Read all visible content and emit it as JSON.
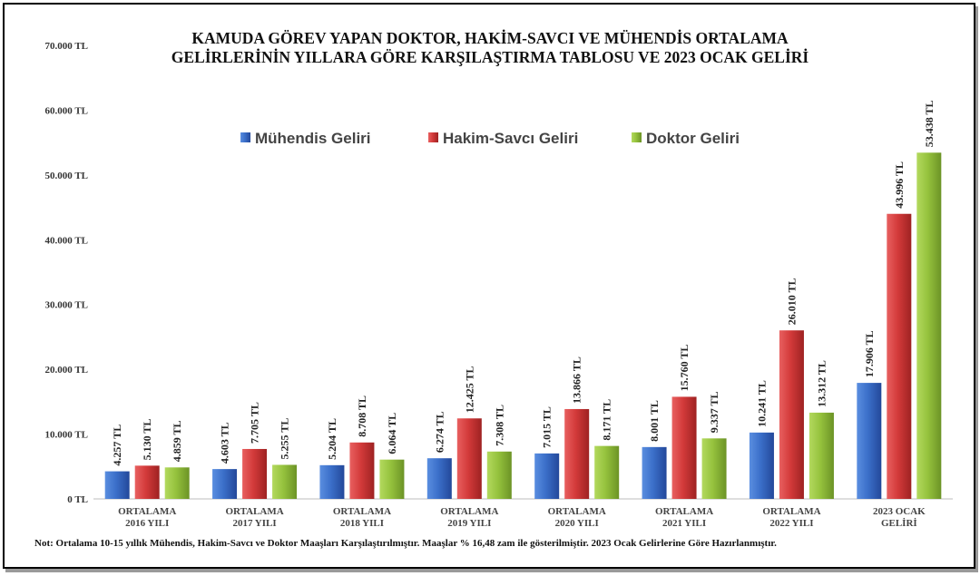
{
  "chart_data": {
    "type": "bar",
    "title": "KAMUDA GÖREV YAPAN DOKTOR, HAKİM-SAVCI VE MÜHENDİS ORTALAMA GELİRLERİNİN YILLARA GÖRE KARŞILAŞTIRMA TABLOSU VE 2023 OCAK GELİRİ",
    "title_lines": [
      "KAMUDA GÖREV YAPAN DOKTOR, HAKİM-SAVCI VE MÜHENDİS ORTALAMA",
      "GELİRLERİNİN YILLARA GÖRE KARŞILAŞTIRMA TABLOSU VE 2023 OCAK GELİRİ"
    ],
    "categories": [
      [
        "ORTALAMA",
        "2016 YILI"
      ],
      [
        "ORTALAMA",
        "2017 YILI"
      ],
      [
        "ORTALAMA",
        "2018 YILI"
      ],
      [
        "ORTALAMA",
        "2019 YILI"
      ],
      [
        "ORTALAMA",
        "2020 YILI"
      ],
      [
        "ORTALAMA",
        "2021 YILI"
      ],
      [
        "ORTALAMA",
        "2022 YILI"
      ],
      [
        "2023 OCAK",
        "GELİRİ"
      ]
    ],
    "series": [
      {
        "name": "Mühendis Geliri",
        "color": "#3b6fc9",
        "values": [
          4257,
          4603,
          5204,
          6274,
          7015,
          8001,
          10241,
          17906
        ],
        "labels": [
          "4.257 TL",
          "4.603 TL",
          "5.204 TL",
          "6.274 TL",
          "7.015 TL",
          "8.001 TL",
          "10.241 TL",
          "17.906 TL"
        ]
      },
      {
        "name": "Hakim-Savcı Geliri",
        "color": "#d33a3a",
        "values": [
          5130,
          7705,
          8708,
          12425,
          13866,
          15760,
          26010,
          43996
        ],
        "labels": [
          "5.130 TL",
          "7.705 TL",
          "8.708 TL",
          "12.425 TL",
          "13.866 TL",
          "15.760 TL",
          "26.010 TL",
          "43.996 TL"
        ]
      },
      {
        "name": "Doktor Geliri",
        "color": "#95c23d",
        "values": [
          4859,
          5255,
          6064,
          7308,
          8171,
          9337,
          13312,
          53438
        ],
        "labels": [
          "4.859 TL",
          "5.255 TL",
          "6.064 TL",
          "7.308 TL",
          "8.171 TL",
          "9.337 TL",
          "13.312 TL",
          "53.438 TL"
        ]
      }
    ],
    "ylim": [
      0,
      70000
    ],
    "yticks": [
      0,
      10000,
      20000,
      30000,
      40000,
      50000,
      60000,
      70000
    ],
    "ytick_labels": [
      "0 TL",
      "10.000 TL",
      "20.000 TL",
      "30.000 TL",
      "40.000 TL",
      "50.000 TL",
      "60.000 TL",
      "70.000 TL"
    ],
    "xlabel": "",
    "ylabel": "",
    "grid": false,
    "legend_position": "top-center"
  },
  "note": "Not: Ortalama 10-15 yıllık Mühendis, Hakim-Savcı ve Doktor Maaşları Karşılaştırılmıştır. Maaşlar % 16,48 zam ile gösterilmiştir. 2023 Ocak Gelirlerine Göre Hazırlanmıştır."
}
